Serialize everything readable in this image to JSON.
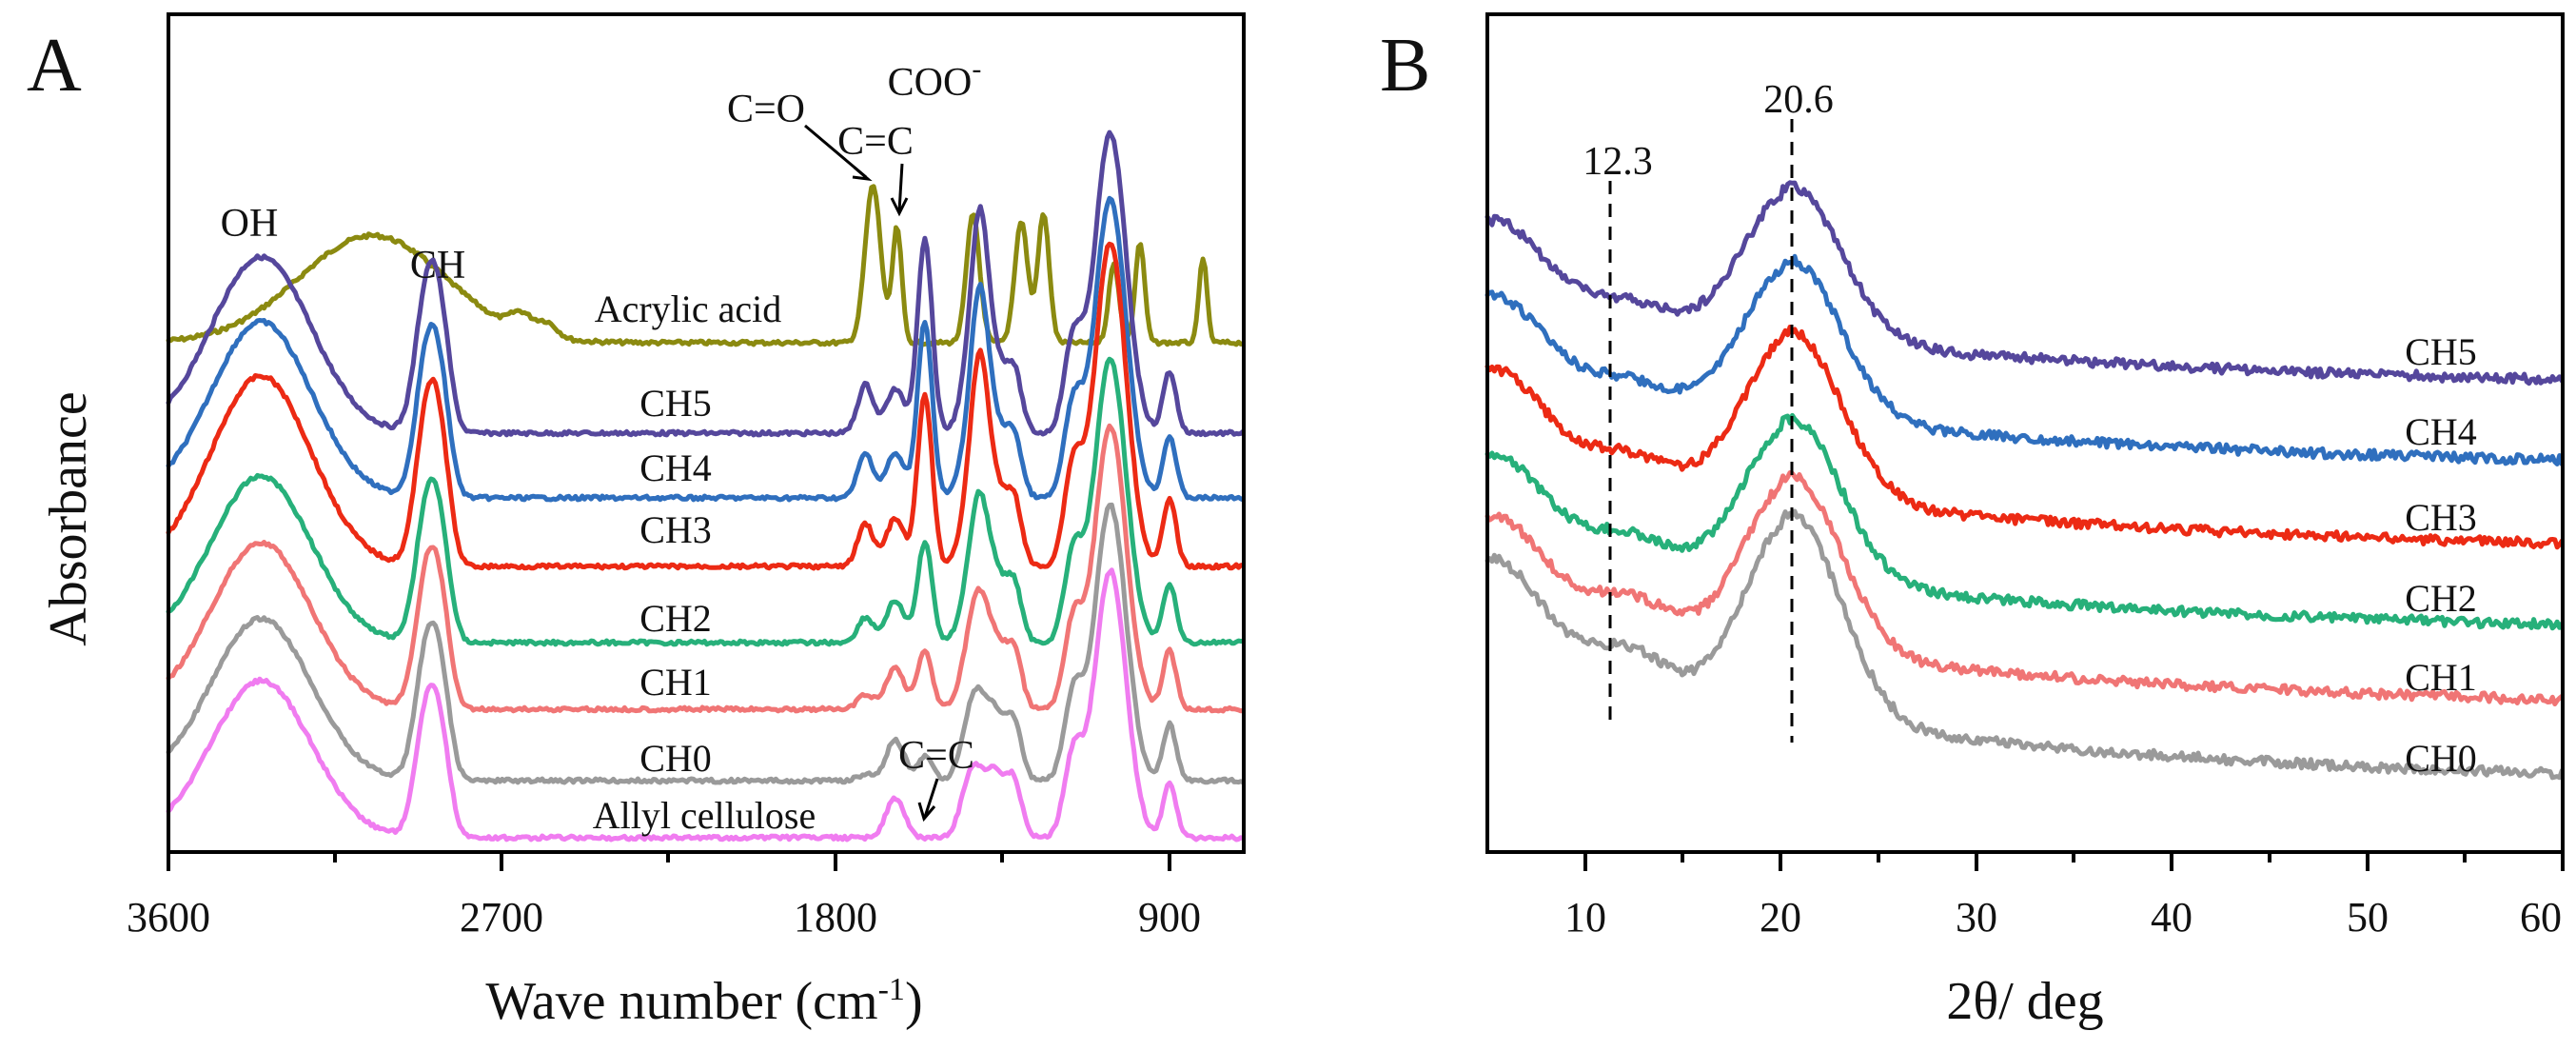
{
  "chart_data": [
    {
      "type": "line",
      "panel": "A",
      "xlabel": "Wave number (cm-1)",
      "ylabel": "Absorbance",
      "xlim": [
        3600,
        700
      ],
      "x_ticks": [
        3600,
        2700,
        1800,
        900
      ],
      "annotations": [
        "OH",
        "CH",
        "C=O",
        "C=C",
        "COO-",
        "C=C"
      ],
      "series": [
        {
          "name": "Acrylic acid",
          "color": "#8b8a10"
        },
        {
          "name": "CH5",
          "color": "#55479c"
        },
        {
          "name": "CH4",
          "color": "#2f6fbe"
        },
        {
          "name": "CH3",
          "color": "#ec2a14"
        },
        {
          "name": "CH2",
          "color": "#27b07a"
        },
        {
          "name": "CH1",
          "color": "#f07575"
        },
        {
          "name": "CH0",
          "color": "#9a9a9a"
        },
        {
          "name": "Allyl cellulose",
          "color": "#f07cf0"
        }
      ]
    },
    {
      "type": "line",
      "panel": "B",
      "xlabel": "2θ/ deg",
      "xlim": [
        5,
        60
      ],
      "x_ticks": [
        10,
        20,
        30,
        40,
        50,
        60
      ],
      "markers": [
        {
          "x": 12.3,
          "label": "12.3"
        },
        {
          "x": 20.6,
          "label": "20.6"
        }
      ],
      "series": [
        {
          "name": "CH5",
          "color": "#55479c"
        },
        {
          "name": "CH4",
          "color": "#2f6fbe"
        },
        {
          "name": "CH3",
          "color": "#ec2a14"
        },
        {
          "name": "CH2",
          "color": "#27b07a"
        },
        {
          "name": "CH1",
          "color": "#f07575"
        },
        {
          "name": "CH0",
          "color": "#9a9a9a"
        }
      ]
    }
  ],
  "panels": {
    "a": {
      "letter": "A",
      "xlabel_main": "Wave number (cm",
      "xlabel_sup": "-1",
      "xlabel_end": ")",
      "ylabel": "Absorbance",
      "ticks": [
        "3600",
        "2700",
        "1800",
        "900"
      ],
      "ann": {
        "oh": "OH",
        "ch": "CH",
        "co": "C=O",
        "cc": "C=C",
        "coo": "COO",
        "coo_sup": "-",
        "cc2": "C=C"
      },
      "labels": {
        "acrylic": "Acrylic acid",
        "ch5": "CH5",
        "ch4": "CH4",
        "ch3": "CH3",
        "ch2": "CH2",
        "ch1": "CH1",
        "ch0": "CH0",
        "allyl": "Allyl cellulose"
      }
    },
    "b": {
      "letter": "B",
      "xlabel": "2θ/ deg",
      "ticks": [
        "10",
        "20",
        "30",
        "40",
        "50",
        "60"
      ],
      "marker1": "12.3",
      "marker2": "20.6",
      "labels": {
        "ch5": "CH5",
        "ch4": "CH4",
        "ch3": "CH3",
        "ch2": "CH2",
        "ch1": "CH1",
        "ch0": "CH0"
      }
    }
  }
}
